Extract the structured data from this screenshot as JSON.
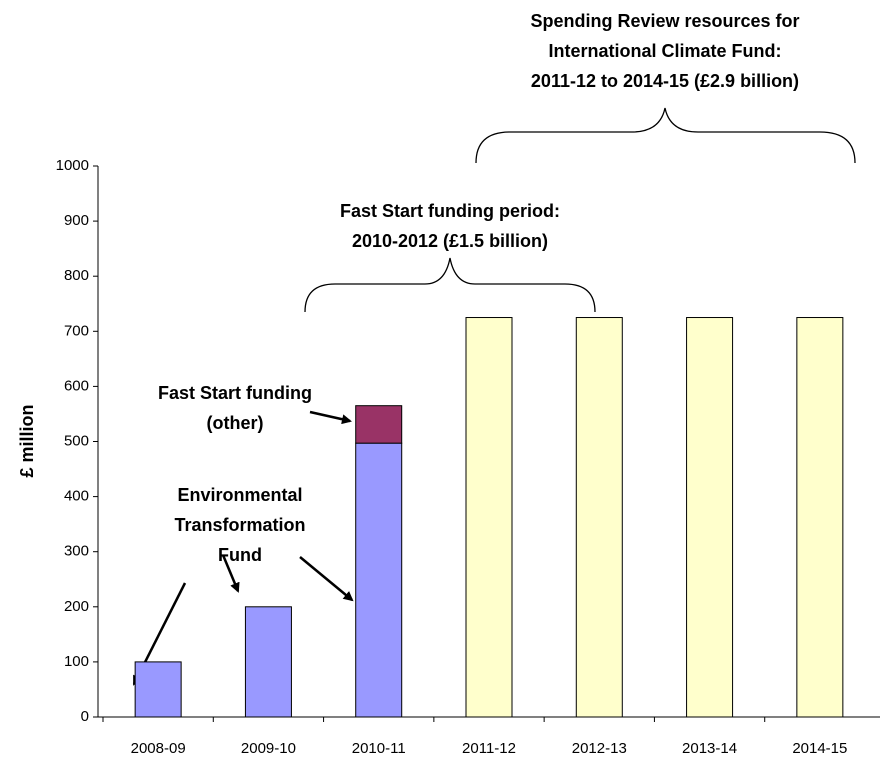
{
  "chart_data": {
    "type": "bar",
    "y_label": "£ million",
    "categories": [
      "2008-09",
      "2009-10",
      "2010-11",
      "2011-12",
      "2012-13",
      "2013-14",
      "2014-15"
    ],
    "series": [
      {
        "name": "Environmental Transformation Fund",
        "color": "#9999ff",
        "values": [
          100,
          200,
          497,
          null,
          null,
          null,
          null
        ]
      },
      {
        "name": "Fast Start funding (other)",
        "color": "#993366",
        "values": [
          null,
          null,
          68,
          null,
          null,
          null,
          null
        ]
      },
      {
        "color": "#ffffcc",
        "values": [
          null,
          null,
          null,
          725,
          725,
          725,
          725
        ]
      }
    ],
    "stacked": true,
    "ylim": [
      0,
      1000
    ],
    "yticks": [
      0,
      100,
      200,
      300,
      400,
      500,
      600,
      700,
      800,
      900,
      1000
    ],
    "annotations": [
      {
        "lines": [
          "Fast Start funding period:",
          "2010-2012 (£1.5 billion)"
        ]
      },
      {
        "lines": [
          "Spending Review resources for",
          "International Climate Fund:",
          "2011-12 to 2014-15 (£2.9 billion)"
        ]
      }
    ]
  }
}
